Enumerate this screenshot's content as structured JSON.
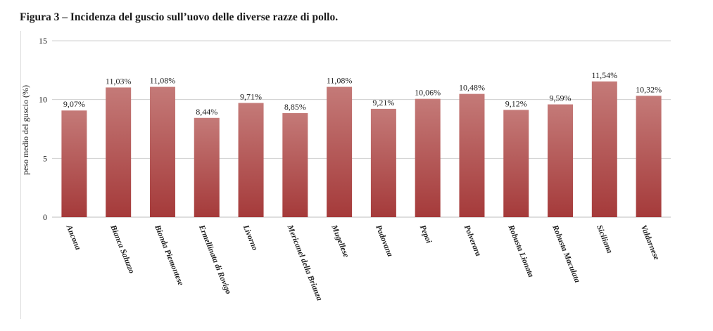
{
  "figure": {
    "title": "Figura 3 – Incidenza del guscio sull’uovo delle diverse razze di pollo."
  },
  "chart_data": {
    "type": "bar",
    "title": "",
    "xlabel": "",
    "ylabel": "peso medio del guscio (%)",
    "ylim": [
      0,
      15
    ],
    "yticks": [
      0,
      5,
      10,
      15
    ],
    "grid": true,
    "legend": "none",
    "bar_color_top": "#c47a78",
    "bar_color_bottom": "#a53a3a",
    "categories": [
      "Ancona",
      "Bianca Saluzzo",
      "Bionda Piemontese",
      "Ermellinata di  Rovigo",
      "Livorno",
      "Mericanel della Brianza",
      "Mugellese",
      "Padovana",
      "Pepoi",
      "Polverara",
      "Robusta Lionata",
      "Robusta Maculata",
      "Siciliana",
      "Valdarnese"
    ],
    "values": [
      9.07,
      11.03,
      11.08,
      8.44,
      9.71,
      8.85,
      11.08,
      9.21,
      10.06,
      10.48,
      9.12,
      9.59,
      11.54,
      10.32
    ],
    "data_labels": [
      "9,07%",
      "11,03%",
      "11,08%",
      "8,44%",
      "9,71%",
      "8,85%",
      "11,08%",
      "9,21%",
      "10,06%",
      "10,48%",
      "9,12%",
      "9,59%",
      "11,54%",
      "10,32%"
    ]
  }
}
